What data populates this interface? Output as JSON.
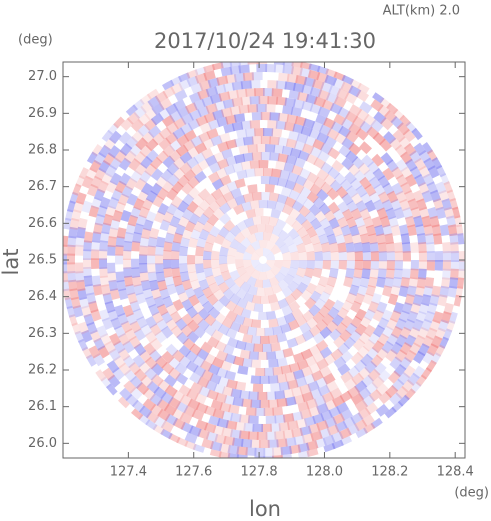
{
  "chart_data": {
    "type": "ppi",
    "title": "2017/10/24 19:41:30",
    "subtitle": "ALT(km) 2.0",
    "x_label": "lon",
    "y_label": "lat",
    "x_unit": "(deg)",
    "y_unit": "(deg)",
    "xlim": [
      127.2,
      128.43
    ],
    "ylim": [
      25.96,
      27.04
    ],
    "xticks": [
      127.4,
      127.6,
      127.8,
      {
        "value": 128,
        "label": "128.0"
      },
      128.2,
      128.4
    ],
    "yticks": [
      {
        "value": 26,
        "label": "26.0"
      },
      26.1,
      26.2,
      26.3,
      26.4,
      26.5,
      26.6,
      26.7,
      26.8,
      26.9,
      {
        "value": 27,
        "label": "27.0"
      }
    ]
  }
}
